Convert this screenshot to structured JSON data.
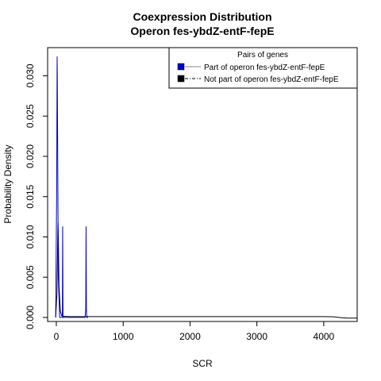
{
  "chart_data": {
    "type": "line",
    "title_line1": "Coexpression Distribution",
    "title_line2": "Operon fes-ybdZ-entF-fepE",
    "xlabel": "SCR",
    "ylabel": "Probability Density",
    "xlim": [
      -130,
      4500
    ],
    "ylim": [
      -0.0005,
      0.0335
    ],
    "x_ticks": [
      0,
      1000,
      2000,
      3000,
      4000
    ],
    "x_tick_labels": [
      "0",
      "1000",
      "2000",
      "3000",
      "4000"
    ],
    "y_ticks": [
      0.0,
      0.005,
      0.01,
      0.015,
      0.02,
      0.025,
      0.03
    ],
    "y_tick_labels": [
      "0.000",
      "0.005",
      "0.010",
      "0.015",
      "0.020",
      "0.025",
      "0.030"
    ],
    "grid": false,
    "legend": {
      "title": "Pairs of genes",
      "placement": "top-right",
      "entries": [
        {
          "label": "Part of operon fes-ybdZ-entF-fepE",
          "color": "#0000cc"
        },
        {
          "label": "Not part of operon fes-ybdZ-entF-fepE",
          "color": "#000000"
        }
      ]
    },
    "series": [
      {
        "name": "Part of operon fes-ybdZ-entF-fepE",
        "color": "#0000cc",
        "x": [
          -10,
          5,
          12,
          15,
          30,
          50,
          80,
          90,
          95,
          100,
          110,
          420,
          430,
          440,
          445,
          450,
          455,
          465,
          475
        ],
        "y": [
          0.0,
          0.015,
          0.0324,
          0.03,
          0.005,
          0.0,
          0.0,
          0.0,
          0.0113,
          0.0,
          0.0,
          0.0,
          0.0,
          0.001,
          0.0113,
          0.001,
          0.0,
          0.0,
          0.0
        ]
      },
      {
        "name": "Not part of operon fes-ybdZ-entF-fepE",
        "color": "#000000",
        "x": [
          -10,
          10,
          20,
          25,
          30,
          40,
          60,
          80,
          100,
          200,
          500,
          1000,
          2000,
          3000,
          3500,
          4000,
          4150,
          4250,
          4350,
          4500
        ],
        "y": [
          0.0,
          0.003,
          0.009,
          0.0118,
          0.01,
          0.004,
          0.0008,
          0.0002,
          0.00015,
          0.0001,
          0.0001,
          0.0001,
          0.0001,
          0.0001,
          0.0001,
          0.0001,
          8e-05,
          -2e-05,
          -8e-05,
          -8e-05
        ]
      }
    ]
  }
}
